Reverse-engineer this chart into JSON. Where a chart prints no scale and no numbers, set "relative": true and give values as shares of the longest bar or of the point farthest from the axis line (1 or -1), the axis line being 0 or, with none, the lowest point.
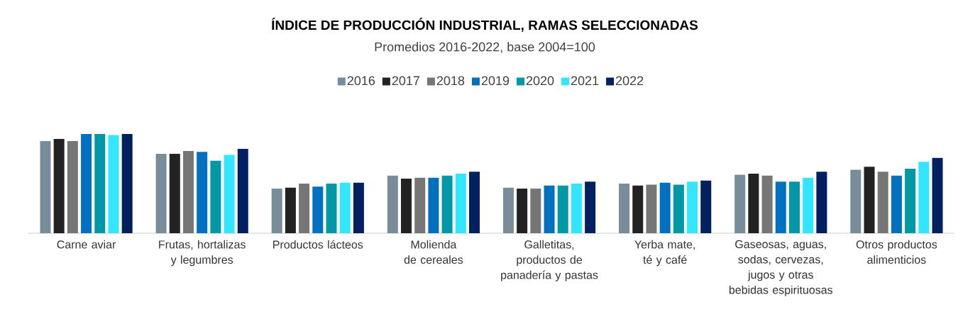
{
  "chart_data": {
    "type": "bar",
    "title": "ÍNDICE DE PRODUCCIÓN INDUSTRIAL, RAMAS SELECCIONADAS",
    "subtitle": "Promedios 2016-2022, base 2004=100",
    "relative": true,
    "legend": "top",
    "categories": [
      "Carne aviar",
      "Frutas, hortalizas y legumbres",
      "Productos lácteos",
      "Molienda de cereales",
      "Galletitas, productos de panadería y pastas",
      "Yerba mate, té y café",
      "Gaseosas, aguas, sodas, cervezas, jugos y otras bebidas espirituosas",
      "Otros productos alimenticios"
    ],
    "series": [
      {
        "name": "2016",
        "color": "#778e9a",
        "values": [
          0.93,
          0.8,
          0.45,
          0.58,
          0.46,
          0.5,
          0.59,
          0.64
        ]
      },
      {
        "name": "2017",
        "color": "#222222",
        "values": [
          0.95,
          0.8,
          0.46,
          0.55,
          0.45,
          0.48,
          0.6,
          0.67
        ]
      },
      {
        "name": "2018",
        "color": "#767676",
        "values": [
          0.93,
          0.83,
          0.5,
          0.56,
          0.45,
          0.49,
          0.58,
          0.62
        ]
      },
      {
        "name": "2019",
        "color": "#0070c0",
        "values": [
          1.0,
          0.82,
          0.47,
          0.56,
          0.48,
          0.51,
          0.52,
          0.58
        ]
      },
      {
        "name": "2020",
        "color": "#0097a7",
        "values": [
          1.0,
          0.73,
          0.5,
          0.58,
          0.48,
          0.49,
          0.52,
          0.65
        ]
      },
      {
        "name": "2021",
        "color": "#33e6ff",
        "values": [
          0.99,
          0.79,
          0.51,
          0.6,
          0.5,
          0.52,
          0.56,
          0.72
        ]
      },
      {
        "name": "2022",
        "color": "#002060",
        "values": [
          1.0,
          0.85,
          0.51,
          0.62,
          0.52,
          0.53,
          0.62,
          0.76
        ]
      }
    ]
  }
}
